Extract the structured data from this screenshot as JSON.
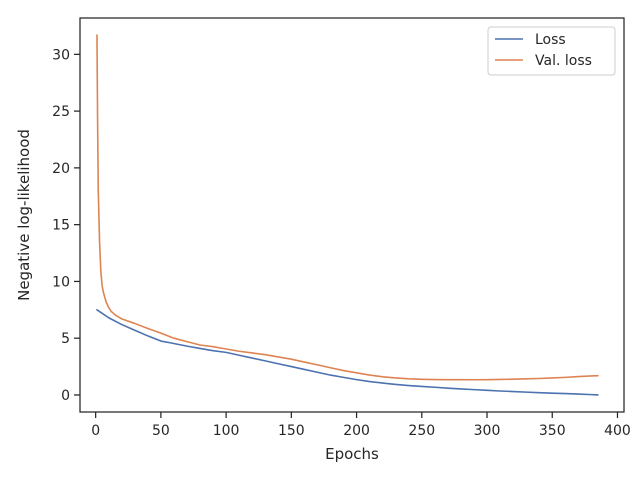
{
  "chart_data": {
    "type": "line",
    "xlabel": "Epochs",
    "ylabel": "Negative log-likelihood",
    "xlim": [
      -12,
      405
    ],
    "ylim": [
      -1.5,
      33.2
    ],
    "xticks": [
      0,
      50,
      100,
      150,
      200,
      250,
      300,
      350,
      400
    ],
    "yticks": [
      0,
      5,
      10,
      15,
      20,
      25,
      30
    ],
    "xtick_labels": [
      "0",
      "50",
      "100",
      "150",
      "200",
      "250",
      "300",
      "350",
      "400"
    ],
    "ytick_labels": [
      "0",
      "5",
      "10",
      "15",
      "20",
      "25",
      "30"
    ],
    "grid": false,
    "legend": {
      "position": "top-right"
    },
    "series": [
      {
        "name": "Loss",
        "color": "#4c72b0",
        "x": [
          1,
          10,
          20,
          30,
          40,
          50,
          57,
          70,
          80,
          90,
          100,
          110,
          120,
          130,
          140,
          150,
          160,
          170,
          180,
          190,
          200,
          210,
          220,
          230,
          240,
          250,
          260,
          270,
          280,
          290,
          300,
          310,
          320,
          330,
          340,
          350,
          360,
          370,
          380,
          385
        ],
        "y": [
          7.5,
          6.8,
          6.2,
          5.7,
          5.2,
          4.75,
          4.6,
          4.3,
          4.1,
          3.9,
          3.75,
          3.5,
          3.25,
          3.0,
          2.75,
          2.5,
          2.25,
          2.0,
          1.75,
          1.55,
          1.35,
          1.18,
          1.05,
          0.93,
          0.83,
          0.75,
          0.68,
          0.6,
          0.53,
          0.47,
          0.41,
          0.35,
          0.3,
          0.25,
          0.2,
          0.16,
          0.12,
          0.08,
          0.03,
          0.0
        ]
      },
      {
        "name": "Val. loss",
        "color": "#dd8452",
        "x": [
          1,
          1.5,
          2,
          3,
          4,
          5,
          6,
          8,
          10,
          12,
          15,
          20,
          30,
          40,
          50,
          60,
          70,
          80,
          90,
          100,
          110,
          120,
          130,
          140,
          150,
          160,
          170,
          180,
          190,
          200,
          210,
          220,
          230,
          240,
          250,
          260,
          270,
          280,
          290,
          300,
          310,
          320,
          330,
          340,
          350,
          360,
          370,
          380,
          385
        ],
        "y": [
          31.7,
          24.0,
          18.0,
          13.5,
          10.8,
          9.6,
          9.0,
          8.2,
          7.7,
          7.35,
          7.05,
          6.7,
          6.3,
          5.85,
          5.45,
          5.0,
          4.7,
          4.4,
          4.25,
          4.05,
          3.85,
          3.7,
          3.55,
          3.35,
          3.15,
          2.9,
          2.65,
          2.4,
          2.15,
          1.95,
          1.75,
          1.6,
          1.5,
          1.42,
          1.38,
          1.36,
          1.35,
          1.35,
          1.34,
          1.35,
          1.37,
          1.39,
          1.42,
          1.45,
          1.5,
          1.55,
          1.62,
          1.68,
          1.7
        ]
      }
    ]
  }
}
